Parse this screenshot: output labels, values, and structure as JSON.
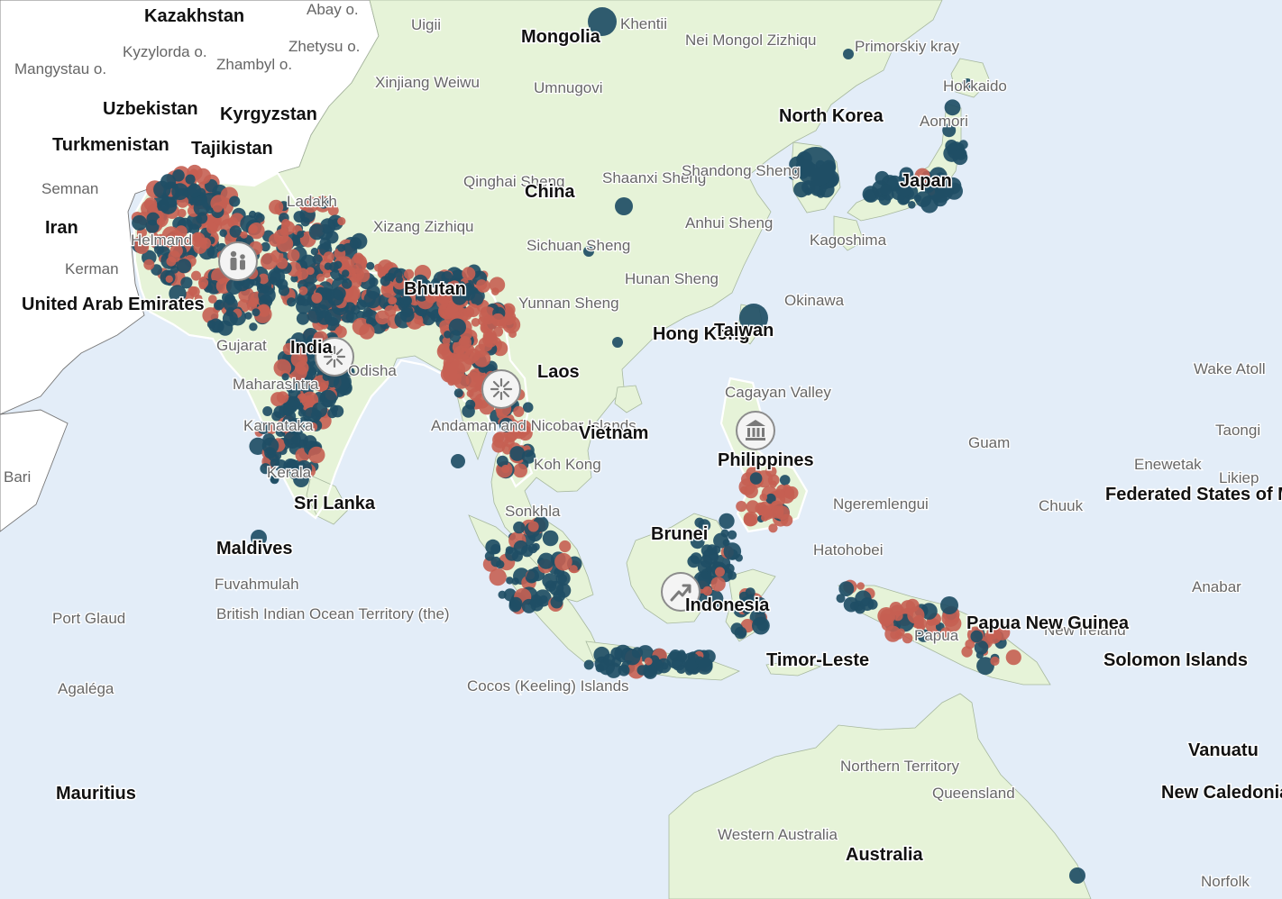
{
  "map": {
    "colors": {
      "ocean": "#e3edf8",
      "land_outside": "#ffffff",
      "land_region": "#e6f3d8",
      "event_type_a": "#1f4e65",
      "event_type_b": "#c55f52",
      "marker_fill": "#f4f4f4",
      "marker_stroke": "#8c8c8c"
    },
    "country_labels": [
      "Kazakhstan",
      "Mongolia",
      "Uzbekistan",
      "Kyrgyzstan",
      "Turkmenistan",
      "Tajikistan",
      "Iran",
      "United Arab Emirates",
      "China",
      "North Korea",
      "Japan",
      "India",
      "Bhutan",
      "Laos",
      "Vietnam",
      "Hong Kong",
      "Taiwan",
      "Philippines",
      "Brunei",
      "Indonesia",
      "Timor-Leste",
      "Papua New Guinea",
      "Solomon Islands",
      "Maldives",
      "Sri Lanka",
      "Federated States of Micronesia",
      "Vanuatu",
      "New Caledonia",
      "Australia",
      "Mauritius"
    ],
    "region_labels": [
      "Abay o.",
      "Kyzylorda o.",
      "Zhetysu o.",
      "Zhambyl o.",
      "Mangystau o.",
      "Uigii",
      "Khentii",
      "Nei Mongol Zizhiqu",
      "Primorskiy kray",
      "Hokkaido",
      "Aomori",
      "Xinjiang Weiwu",
      "Umnugovi",
      "Qinghai Sheng",
      "Shaanxi Sheng",
      "Shandong Sheng",
      "Anhui Sheng",
      "Xizang Zizhiqu",
      "Sichuan Sheng",
      "Hunan Sheng",
      "Yunnan Sheng",
      "Kagoshima",
      "Okinawa",
      "Kerman",
      "Semnan",
      "Helmand",
      "Ladakh",
      "Gujarat",
      "Odisha",
      "Maharashtra",
      "Karnataka",
      "Kerala",
      "Andaman and Nicobar Islands",
      "Koh Kong",
      "Sonkhla",
      "Cagayan Valley",
      "Guam",
      "Wake Atoll",
      "Taongi",
      "Enewetak",
      "Likiep",
      "Chuuk",
      "Ngeremlengui",
      "Hatohobei",
      "Anabar",
      "New Ireland",
      "Fuvahmulah",
      "British Indian Ocean Territory (the)",
      "Port Glaud",
      "Agaléga",
      "Cocos (Keeling) Islands",
      "Northern Territory",
      "Western Australia",
      "Queensland",
      "Norfolk",
      "Bari",
      "Papua"
    ],
    "markers": [
      {
        "name": "people-icon"
      },
      {
        "name": "sunburst-icon"
      },
      {
        "name": "sunburst-icon"
      },
      {
        "name": "bank-icon"
      },
      {
        "name": "trend-up-icon"
      }
    ]
  }
}
